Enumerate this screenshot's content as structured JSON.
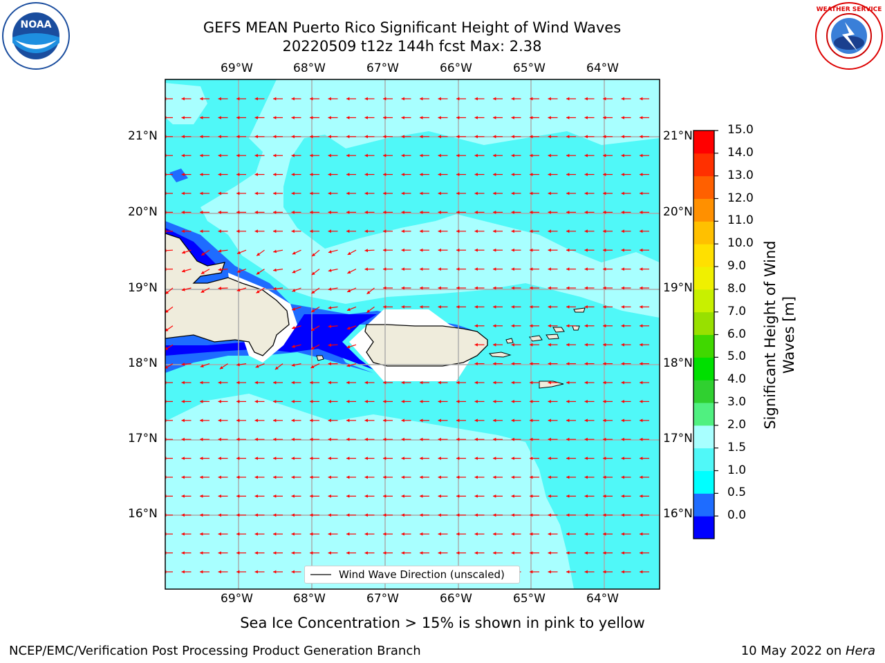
{
  "title": {
    "line1": "GEFS MEAN Puerto Rico Significant Height of Wind Waves",
    "line2": "20220509 t12z 144h fcst   Max: 2.38"
  },
  "axes": {
    "lon_labels": [
      "69°W",
      "68°W",
      "67°W",
      "66°W",
      "65°W",
      "64°W"
    ],
    "lat_labels": [
      "21°N",
      "20°N",
      "19°N",
      "18°N",
      "17°N",
      "16°N"
    ]
  },
  "colorbar": {
    "label": "Significant Height of Wind Waves [m]",
    "ticks": [
      "15.0",
      "14.0",
      "13.0",
      "12.0",
      "11.0",
      "10.0",
      "9.0",
      "8.0",
      "7.0",
      "6.0",
      "5.0",
      "4.0",
      "3.0",
      "2.0",
      "1.5",
      "1.0",
      "0.5",
      "0.0"
    ],
    "colors": [
      "#0000ff",
      "#1e6cff",
      "#00ffff",
      "#50f8f8",
      "#a8ffff",
      "#50f080",
      "#30d030",
      "#00e000",
      "#40d800",
      "#98e000",
      "#c8f000",
      "#f0f000",
      "#ffe000",
      "#ffc000",
      "#ff9000",
      "#ff6000",
      "#ff3000",
      "#ff0000"
    ]
  },
  "legend": {
    "label": "Wind Wave Direction (unscaled)"
  },
  "subtitle": "Sea Ice Concentration > 15% is shown in pink to yellow",
  "footer": {
    "left": "NCEP/EMC/Verification Post Processing Product Generation Branch",
    "right_prefix": "10 May 2022 on ",
    "right_machine": "Hera"
  },
  "logos": {
    "left": "NOAA",
    "right": "NATIONAL WEATHER SERVICE"
  },
  "map": {
    "arrow_color": "#ff0000",
    "land_color": "#efecdc",
    "sea_bg": "#50f8f8",
    "light_sea": "#a8ffff",
    "deep": "#0000ff",
    "mid": "#1e6cff"
  }
}
